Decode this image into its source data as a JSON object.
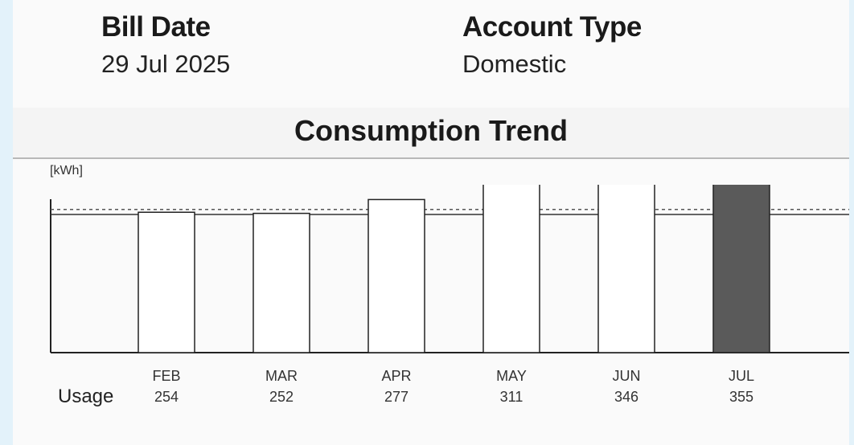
{
  "header": {
    "bill_date_label": "Bill Date",
    "bill_date_value": "29 Jul 2025",
    "account_type_label": "Account Type",
    "account_type_value": "Domestic"
  },
  "chart_data": {
    "type": "bar",
    "title": "Consumption Trend",
    "ylabel": "[kWh]",
    "row_label": "Usage",
    "categories": [
      "FEB",
      "MAR",
      "APR",
      "MAY",
      "JUN",
      "JUL"
    ],
    "values": [
      254,
      252,
      277,
      311,
      346,
      355
    ],
    "value_labels": [
      "254",
      "252",
      "277",
      "311",
      "346",
      "355"
    ],
    "highlight_index": 5,
    "reference_line": 259,
    "ylim": [
      0,
      500
    ],
    "colors": {
      "bar": "#ffffff",
      "highlight": "#5a5a5a",
      "stroke": "#222222"
    }
  }
}
